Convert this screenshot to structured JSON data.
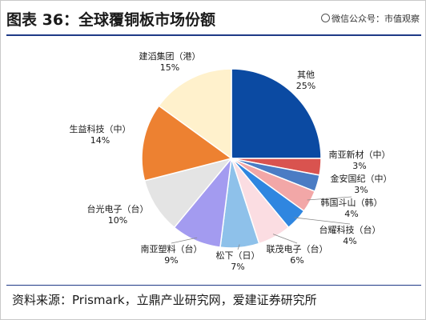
{
  "header": {
    "title": "图表 36：全球覆铜板市场份额",
    "watermark": "微信公众号：市值观察"
  },
  "source": "资料来源：Prismark，立鼎产业研究网，爱建证券研究所",
  "chart_data": {
    "type": "pie",
    "title": "图表 36：全球覆铜板市场份额",
    "slices": [
      {
        "label": "其他",
        "value": 25,
        "value_label": "25%",
        "color": "#0b4aa2"
      },
      {
        "label": "南亚新材（中）",
        "value": 3,
        "value_label": "3%",
        "color": "#d9534f"
      },
      {
        "label": "金安国纪（中）",
        "value": 3,
        "value_label": "3%",
        "color": "#4a7cc4"
      },
      {
        "label": "韩国斗山（韩）",
        "value": 4,
        "value_label": "4%",
        "color": "#f2a7a7"
      },
      {
        "label": "台耀科技（台）",
        "value": 4,
        "value_label": "4%",
        "color": "#2f86e0"
      },
      {
        "label": "联茂电子（台）",
        "value": 6,
        "value_label": "6%",
        "color": "#fbdde2"
      },
      {
        "label": "松下（日）",
        "value": 7,
        "value_label": "7%",
        "color": "#8ec1ea"
      },
      {
        "label": "南亚塑料（台）",
        "value": 9,
        "value_label": "9%",
        "color": "#a39bf0"
      },
      {
        "label": "台光电子（台）",
        "value": 10,
        "value_label": "10%",
        "color": "#e4e4e4"
      },
      {
        "label": "生益科技（中）",
        "value": 14,
        "value_label": "14%",
        "color": "#ed8131"
      },
      {
        "label": "建滔集团（港）",
        "value": 15,
        "value_label": "15%",
        "color": "#fff1cc"
      }
    ]
  }
}
